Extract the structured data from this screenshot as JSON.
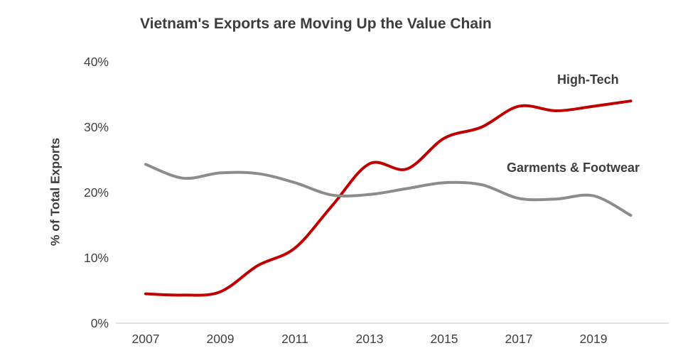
{
  "chart_data": {
    "type": "line",
    "title": "Vietnam's Exports are Moving Up the Value Chain",
    "ylabel": "% of Total Exports",
    "xlabel": "",
    "ylim": [
      0,
      40
    ],
    "grid": false,
    "legend_position": "inline-annotations",
    "x": [
      2007,
      2008,
      2009,
      2010,
      2011,
      2012,
      2013,
      2014,
      2015,
      2016,
      2017,
      2018,
      2019,
      2020
    ],
    "yticks": [
      {
        "value": 0,
        "label": "0%"
      },
      {
        "value": 10,
        "label": "10%"
      },
      {
        "value": 20,
        "label": "20%"
      },
      {
        "value": 30,
        "label": "30%"
      },
      {
        "value": 40,
        "label": "40%"
      }
    ],
    "xticks": [
      {
        "value": 2007,
        "label": "2007"
      },
      {
        "value": 2009,
        "label": "2009"
      },
      {
        "value": 2011,
        "label": "2011"
      },
      {
        "value": 2013,
        "label": "2013"
      },
      {
        "value": 2015,
        "label": "2015"
      },
      {
        "value": 2017,
        "label": "2017"
      },
      {
        "value": 2019,
        "label": "2019"
      }
    ],
    "series": [
      {
        "name": "High-Tech",
        "color": "#C00000",
        "data_name": "high-tech-line",
        "values": [
          4.5,
          4.3,
          4.8,
          8.8,
          11.5,
          18.0,
          24.4,
          23.6,
          28.3,
          30.0,
          33.2,
          32.5,
          33.2,
          34.0
        ]
      },
      {
        "name": "Garments & Footwear",
        "color": "#8C8C8C",
        "data_name": "garments-footwear-line",
        "values": [
          24.3,
          22.2,
          23.0,
          22.9,
          21.5,
          19.6,
          19.7,
          20.6,
          21.5,
          21.2,
          19.1,
          19.0,
          19.5,
          16.5
        ]
      }
    ],
    "axis_line_color": "#D9D9D9"
  }
}
